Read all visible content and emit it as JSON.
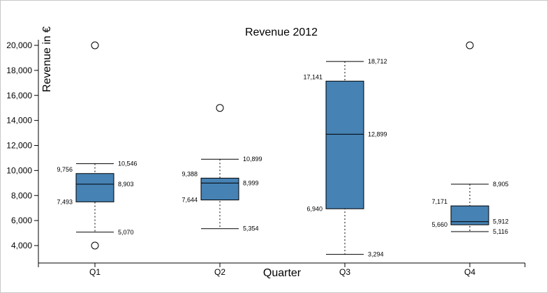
{
  "chart_data": {
    "type": "box",
    "title": "Revenue 2012",
    "xlabel": "Quarter",
    "ylabel": "Revenue in €",
    "ylim": [
      3000,
      21000
    ],
    "y_ticks": [
      4000,
      6000,
      8000,
      10000,
      12000,
      14000,
      16000,
      18000,
      20000
    ],
    "y_tick_labels": [
      "4,000",
      "6,000",
      "8,000",
      "10,000",
      "12,000",
      "14,000",
      "16,000",
      "18,000",
      "20,000"
    ],
    "categories": [
      "Q1",
      "Q2",
      "Q3",
      "Q4"
    ],
    "box_color": "#4682b4",
    "boxes": [
      {
        "category": "Q1",
        "whisker_low": 5070,
        "q1": 7493,
        "median": 8903,
        "q3": 9756,
        "whisker_high": 10546,
        "outliers": [
          20000,
          4000
        ],
        "labels": {
          "whisker_low": "5,070",
          "q1": "7,493",
          "median": "8,903",
          "q3": "9,756",
          "whisker_high": "10,546"
        }
      },
      {
        "category": "Q2",
        "whisker_low": 5354,
        "q1": 7644,
        "median": 8999,
        "q3": 9388,
        "whisker_high": 10899,
        "outliers": [
          15000
        ],
        "labels": {
          "whisker_low": "5,354",
          "q1": "7,644",
          "median": "8,999",
          "q3": "9,388",
          "whisker_high": "10,899"
        }
      },
      {
        "category": "Q3",
        "whisker_low": 3294,
        "q1": 6940,
        "median": 12899,
        "q3": 17141,
        "whisker_high": 18712,
        "outliers": [],
        "labels": {
          "whisker_low": "3,294",
          "q1": "6,940",
          "median": "12,899",
          "q3": "17,141",
          "whisker_high": "18,712"
        }
      },
      {
        "category": "Q4",
        "whisker_low": 5116,
        "q1": 5660,
        "median": 5912,
        "q3": 7171,
        "whisker_high": 8905,
        "outliers": [
          20000
        ],
        "labels": {
          "whisker_low": "5,116",
          "q1": "5,660",
          "median": "5,912",
          "q3": "7,171",
          "whisker_high": "8,905"
        }
      }
    ]
  }
}
